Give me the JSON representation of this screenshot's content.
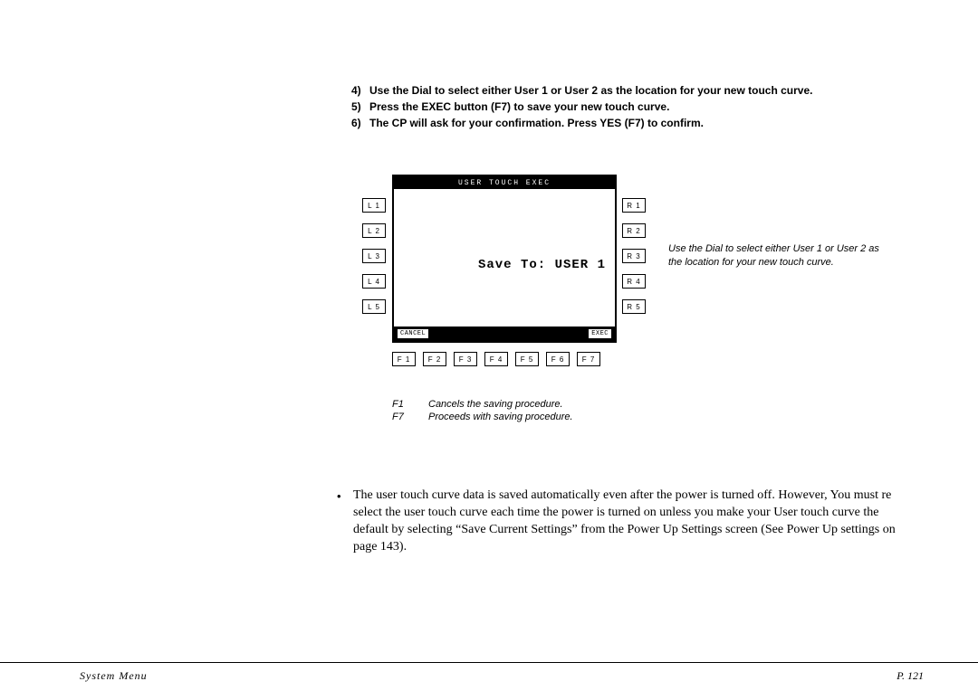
{
  "instructions": [
    {
      "n": "4)",
      "text": "Use the Dial to select either User 1 or User 2 as the location for your new touch curve."
    },
    {
      "n": "5)",
      "text": "Press the EXEC button (F7) to save your new touch curve."
    },
    {
      "n": "6)",
      "text": "The CP  will ask for your confirmation.  Press YES (F7) to confirm."
    }
  ],
  "lcd": {
    "title": "USER TOUCH EXEC",
    "main": "Save To: USER  1",
    "bottom_left": "CANCEL",
    "bottom_right": "EXEC"
  },
  "side_left": [
    "L 1",
    "L 2",
    "L 3",
    "L 4",
    "L 5"
  ],
  "side_right": [
    "R 1",
    "R 2",
    "R 3",
    "R 4",
    "R 5"
  ],
  "fkeys": [
    "F 1",
    "F 2",
    "F 3",
    "F 4",
    "F 5",
    "F 6",
    "F 7"
  ],
  "caption": "Use the Dial to select either User 1 or User 2 as the location for your new touch curve.",
  "legend": [
    {
      "k": "F1",
      "d": "Cancels the saving procedure."
    },
    {
      "k": "F7",
      "d": "Proceeds with saving procedure."
    }
  ],
  "body": "The user touch curve data is saved automatically even after the power is turned off.  However, You must re select the user touch curve each time the power is turned on unless you make your User touch curve the default by selecting “Save Current Settings” from the Power Up Settings screen (See Power Up settings on page 143).",
  "footer": {
    "left": "System Menu",
    "right": "P. 121"
  },
  "colors": {
    "bg": "#ffffff",
    "fg": "#000000"
  }
}
